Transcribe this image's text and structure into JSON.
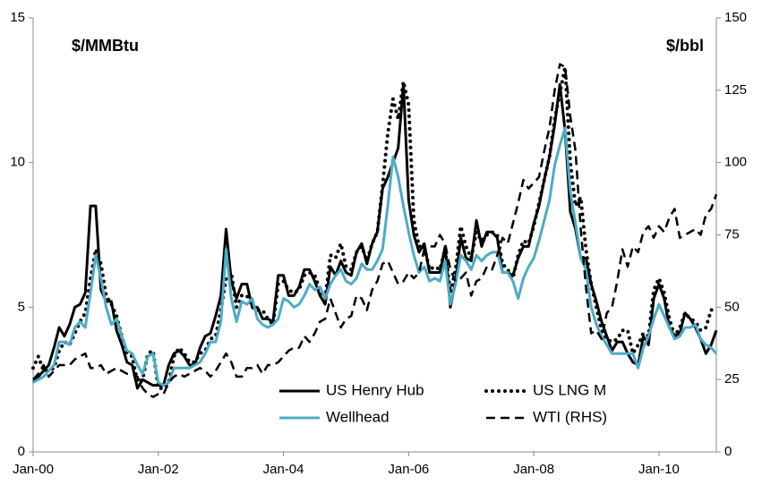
{
  "chart_data": {
    "type": "line",
    "annotations": [
      {
        "text": "$/MMBtu",
        "axis": "y"
      },
      {
        "text": "$/bbl",
        "axis": "y2"
      }
    ],
    "categories": [
      "Jan-00",
      null,
      null,
      null,
      null,
      null,
      null,
      null,
      null,
      null,
      null,
      null,
      null,
      null,
      null,
      null,
      null,
      null,
      null,
      null,
      null,
      null,
      null,
      null,
      "Jan-02",
      null,
      null,
      null,
      null,
      null,
      null,
      null,
      null,
      null,
      null,
      null,
      null,
      null,
      null,
      null,
      null,
      null,
      null,
      null,
      null,
      null,
      null,
      null,
      "Jan-04",
      null,
      null,
      null,
      null,
      null,
      null,
      null,
      null,
      null,
      null,
      null,
      null,
      null,
      null,
      null,
      null,
      null,
      null,
      null,
      null,
      null,
      null,
      null,
      "Jan-06",
      null,
      null,
      null,
      null,
      null,
      null,
      null,
      null,
      null,
      null,
      null,
      null,
      null,
      null,
      null,
      null,
      null,
      null,
      null,
      null,
      null,
      null,
      null,
      "Jan-08",
      null,
      null,
      null,
      null,
      null,
      null,
      null,
      null,
      null,
      null,
      null,
      null,
      null,
      null,
      null,
      null,
      null,
      null,
      null,
      null,
      null,
      null,
      null,
      "Jan-10",
      null,
      null,
      null,
      null,
      null,
      null,
      null,
      null,
      null,
      null,
      null
    ],
    "ylim": [
      0,
      15
    ],
    "yticks": [
      0,
      5,
      10,
      15
    ],
    "y2lim": [
      0,
      150
    ],
    "y2ticks": [
      0,
      25,
      50,
      75,
      100,
      125,
      150
    ],
    "legend": "lower center",
    "series": [
      {
        "name": "US Henry Hub",
        "color": "#000000",
        "dash": "solid",
        "axis": "y",
        "values": [
          2.4,
          2.6,
          2.8,
          3.0,
          3.6,
          4.3,
          4.0,
          4.4,
          5.0,
          5.1,
          5.5,
          8.5,
          8.5,
          5.6,
          5.2,
          5.2,
          4.2,
          3.7,
          3.1,
          3.0,
          2.2,
          2.5,
          2.4,
          2.3,
          2.3,
          2.3,
          3.0,
          3.4,
          3.5,
          3.3,
          3.0,
          3.0,
          3.6,
          4.0,
          4.1,
          4.7,
          5.4,
          7.7,
          5.9,
          5.3,
          5.8,
          5.8,
          5.0,
          5.0,
          4.6,
          4.6,
          4.5,
          6.1,
          6.1,
          5.4,
          5.4,
          5.7,
          6.3,
          6.3,
          5.9,
          5.4,
          5.1,
          6.4,
          6.1,
          6.6,
          6.2,
          6.1,
          6.9,
          7.2,
          6.5,
          7.2,
          7.6,
          9.1,
          9.5,
          10.0,
          10.5,
          12.7,
          8.7,
          7.5,
          6.9,
          7.2,
          6.2,
          6.2,
          6.2,
          7.1,
          5.0,
          5.9,
          7.4,
          6.7,
          6.6,
          8.0,
          7.1,
          7.6,
          7.6,
          7.4,
          6.2,
          6.2,
          6.1,
          6.7,
          7.1,
          7.1,
          7.9,
          8.5,
          9.4,
          10.2,
          11.3,
          12.7,
          11.1,
          8.3,
          7.7,
          6.7,
          6.7,
          5.8,
          5.2,
          4.5,
          4.0,
          3.5,
          3.8,
          3.8,
          3.4,
          3.1,
          3.0,
          4.0,
          3.7,
          5.3,
          5.8,
          5.3,
          4.3,
          4.0,
          4.1,
          4.8,
          4.6,
          4.3,
          3.9,
          3.4,
          3.7,
          4.2
        ]
      },
      {
        "name": "US LNG M",
        "color": "#000000",
        "dash": "dotted",
        "axis": "y",
        "values": [
          2.9,
          3.3,
          2.8,
          2.8,
          2.9,
          3.5,
          3.8,
          3.7,
          4.1,
          4.5,
          4.8,
          6.0,
          7.0,
          6.5,
          5.4,
          5.1,
          4.7,
          4.0,
          3.4,
          3.3,
          2.4,
          2.5,
          3.4,
          3.5,
          2.2,
          2.2,
          2.4,
          3.3,
          3.6,
          3.4,
          3.1,
          3.1,
          3.4,
          3.5,
          3.9,
          4.0,
          4.9,
          6.0,
          6.2,
          5.0,
          5.4,
          5.4,
          5.0,
          4.9,
          4.9,
          4.6,
          4.4,
          5.8,
          5.9,
          5.6,
          5.5,
          5.6,
          6.1,
          6.2,
          6.1,
          5.6,
          5.3,
          6.8,
          6.7,
          7.2,
          6.4,
          6.3,
          6.9,
          7.1,
          6.6,
          7.2,
          7.6,
          9.2,
          11.0,
          12.2,
          11.5,
          12.8,
          12.0,
          8.0,
          7.1,
          7.1,
          6.3,
          6.4,
          6.3,
          7.0,
          5.5,
          6.3,
          7.8,
          7.1,
          6.7,
          7.6,
          7.3,
          7.5,
          7.6,
          7.5,
          6.5,
          6.3,
          6.0,
          6.8,
          7.3,
          7.2,
          7.8,
          8.6,
          9.4,
          10.2,
          11.5,
          12.4,
          13.3,
          10.0,
          8.5,
          8.8,
          7.0,
          5.8,
          5.0,
          4.2,
          3.9,
          3.8,
          3.9,
          4.2,
          4.2,
          3.4,
          3.7,
          4.1,
          4.0,
          5.6,
          6.0,
          5.5,
          4.6,
          4.0,
          4.3,
          4.8,
          4.6,
          4.5,
          4.2,
          4.3,
          4.9,
          5.0
        ]
      },
      {
        "name": "Wellhead",
        "color": "#4bacc6",
        "dash": "solid",
        "axis": "y",
        "values": [
          2.4,
          2.5,
          2.6,
          2.8,
          3.0,
          3.8,
          3.8,
          3.7,
          4.3,
          4.5,
          4.3,
          5.5,
          6.8,
          6.0,
          5.0,
          4.4,
          4.6,
          4.0,
          3.5,
          3.4,
          3.0,
          2.7,
          3.3,
          3.4,
          2.4,
          2.3,
          2.4,
          2.9,
          2.9,
          2.9,
          2.9,
          3.0,
          3.1,
          3.4,
          3.8,
          3.8,
          4.5,
          7.0,
          5.3,
          4.5,
          5.2,
          5.1,
          5.3,
          4.6,
          4.4,
          4.3,
          4.4,
          4.6,
          5.3,
          5.2,
          5.0,
          5.1,
          5.4,
          5.8,
          5.6,
          5.7,
          5.3,
          5.8,
          6.1,
          6.3,
          5.9,
          5.8,
          6.0,
          6.5,
          6.3,
          6.3,
          6.6,
          7.0,
          8.5,
          10.2,
          9.5,
          8.5,
          7.6,
          6.8,
          6.2,
          6.4,
          5.9,
          6.0,
          5.9,
          6.6,
          5.1,
          5.8,
          6.8,
          6.6,
          6.3,
          6.8,
          6.6,
          6.8,
          6.9,
          6.9,
          6.2,
          6.2,
          5.9,
          5.3,
          6.0,
          6.4,
          6.7,
          7.3,
          8.0,
          8.7,
          9.9,
          10.6,
          11.2,
          9.0,
          7.9,
          6.7,
          6.3,
          5.0,
          4.4,
          4.0,
          3.7,
          3.4,
          3.4,
          3.4,
          3.4,
          3.4,
          2.9,
          3.6,
          4.0,
          4.6,
          5.1,
          4.7,
          4.3,
          3.9,
          4.0,
          4.3,
          4.3,
          4.4,
          3.9,
          3.7,
          3.6,
          3.4
        ]
      },
      {
        "name": "WTI (RHS)",
        "color": "#000000",
        "dash": "dashed",
        "axis": "y2",
        "values": [
          25,
          27,
          30,
          26,
          28,
          30,
          30,
          30,
          32,
          33,
          34,
          29,
          29,
          30,
          27,
          28,
          29,
          28,
          27,
          27,
          26,
          22,
          20,
          19,
          20,
          20,
          24,
          26,
          27,
          26,
          27,
          28,
          29,
          28,
          26,
          28,
          31,
          34,
          31,
          26,
          26,
          29,
          29,
          30,
          27,
          30,
          30,
          31,
          33,
          35,
          36,
          36,
          40,
          38,
          41,
          45,
          46,
          53,
          48,
          43,
          46,
          47,
          54,
          53,
          49,
          56,
          59,
          65,
          66,
          62,
          58,
          59,
          62,
          60,
          62,
          70,
          71,
          71,
          75,
          72,
          63,
          59,
          60,
          62,
          54,
          59,
          60,
          64,
          63,
          68,
          74,
          72,
          79,
          86,
          94,
          91,
          93,
          95,
          104,
          112,
          125,
          134,
          133,
          116,
          104,
          77,
          57,
          41,
          42,
          39,
          48,
          50,
          59,
          70,
          64,
          71,
          69,
          76,
          78,
          74,
          78,
          76,
          81,
          84,
          74,
          75,
          76,
          77,
          75,
          82,
          84,
          89
        ]
      }
    ]
  }
}
